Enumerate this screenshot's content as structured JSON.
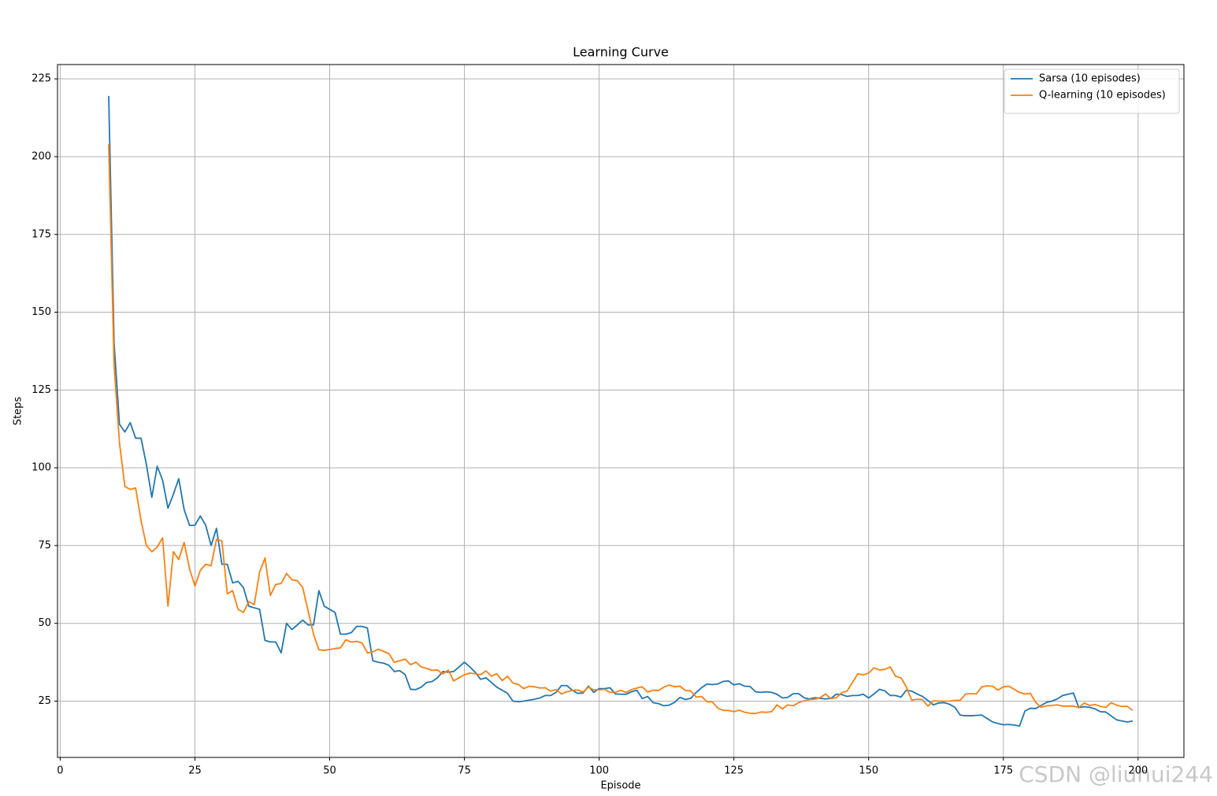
{
  "chart_data": {
    "type": "line",
    "title": "Learning Curve",
    "x_label": "Episode",
    "y_label": "Steps",
    "x": [
      9,
      10,
      11,
      12,
      13,
      14,
      15,
      16,
      17,
      18,
      19,
      20,
      21,
      22,
      23,
      24,
      25,
      26,
      27,
      28,
      29,
      30,
      31,
      32,
      33,
      34,
      35,
      36,
      37,
      38,
      39,
      40,
      41,
      42,
      43,
      44,
      45,
      46,
      47,
      48,
      49,
      50,
      51,
      52,
      53,
      54,
      55,
      56,
      57,
      58,
      59,
      60,
      61,
      62,
      63,
      64,
      65,
      66,
      67,
      68,
      69,
      70,
      71,
      72,
      73,
      74,
      75,
      76,
      77,
      78,
      79,
      80,
      81,
      82,
      83,
      84,
      85,
      86,
      87,
      88,
      89,
      90,
      91,
      92,
      93,
      94,
      95,
      96,
      97,
      98,
      99,
      100,
      101,
      102,
      103,
      104,
      105,
      106,
      107,
      108,
      109,
      110,
      111,
      112,
      113,
      114,
      115,
      116,
      117,
      118,
      119,
      120,
      121,
      122,
      123,
      124,
      125,
      126,
      127,
      128,
      129,
      130,
      131,
      132,
      133,
      134,
      135,
      136,
      137,
      138,
      139,
      140,
      141,
      142,
      143,
      144,
      145,
      146,
      147,
      148,
      149,
      150,
      151,
      152,
      153,
      154,
      155,
      156,
      157,
      158,
      159,
      160,
      161,
      162,
      163,
      164,
      165,
      166,
      167,
      168,
      169,
      170,
      171,
      172,
      173,
      174,
      175,
      176,
      177,
      178,
      179,
      180,
      181,
      182,
      183,
      184,
      185,
      186,
      187,
      188,
      189,
      190,
      191,
      192,
      193,
      194,
      195,
      196,
      197,
      198,
      199
    ],
    "series": [
      {
        "name": "Sarsa (10 episodes)",
        "color": "#1f77b4",
        "values": [
          219.5,
          140,
          114,
          111.5,
          114.5,
          109.5,
          109.5,
          101,
          90.5,
          100.5,
          96,
          87,
          91.5,
          96.5,
          86.5,
          81.5,
          81.5,
          84.5,
          81.5,
          75,
          80.5,
          69,
          69,
          63,
          63.5,
          61.5,
          55.5,
          55,
          54.5,
          44.5,
          44,
          44,
          40.5,
          50,
          48,
          49.5,
          51,
          49.5,
          49.5,
          60.5,
          55.5,
          54.5,
          53.5,
          46.5,
          46.5,
          47,
          49,
          49,
          48.5,
          38,
          37.5,
          37.2,
          36.5,
          34.5,
          34.8,
          33.5,
          28.8,
          28.7,
          29.5,
          31,
          31.3,
          32.5,
          34.5,
          34.3,
          34.5,
          36,
          37.5,
          36,
          34.3,
          32,
          32.5,
          31,
          29.5,
          28.5,
          27.5,
          25,
          24.8,
          25,
          25.3,
          25.6,
          26,
          26.8,
          26.8,
          27.8,
          30,
          30,
          28.5,
          27.5,
          27.6,
          29.8,
          27.8,
          29,
          29,
          29.3,
          27.3,
          27.2,
          27.2,
          28,
          28.5,
          25.8,
          26.5,
          24.5,
          24.2,
          23.5,
          23.7,
          24.6,
          26.2,
          25.5,
          25.9,
          27.8,
          29.3,
          30.5,
          30.3,
          30.5,
          31.3,
          31.5,
          30.2,
          30.6,
          29.8,
          29.7,
          28,
          27.8,
          28,
          27.8,
          27.2,
          26,
          26.2,
          27.4,
          27.4,
          26.1,
          25.7,
          26.1,
          25.9,
          25.7,
          25.9,
          27.2,
          27.1,
          26.5,
          26.8,
          26.8,
          27.2,
          26,
          27.3,
          28.8,
          28.3,
          26.8,
          26.8,
          26.3,
          28.5,
          28.2,
          27.3,
          26.5,
          25.2,
          23.8,
          24.4,
          24.5,
          24,
          23,
          20.5,
          20.3,
          20.3,
          20.4,
          20.5,
          19.4,
          18.3,
          17.8,
          17.4,
          17.5,
          17.3,
          17,
          21.8,
          22.7,
          22.6,
          23.6,
          24.6,
          25,
          25.7,
          26.8,
          27.2,
          27.6,
          22.9,
          23.2,
          23,
          22.5,
          21.6,
          21.5,
          20.2,
          19,
          18.6,
          18.3,
          18.6
        ]
      },
      {
        "name": "Q-learning (10 episodes)",
        "color": "#ff7f0e",
        "values": [
          204,
          133,
          108,
          94,
          93,
          93.5,
          83,
          75,
          73,
          74.5,
          77.5,
          55.5,
          73,
          70.5,
          76,
          67.5,
          62,
          67,
          69,
          68.5,
          77,
          76.5,
          59.5,
          60.5,
          54.5,
          53.5,
          57,
          56,
          66.5,
          71,
          59,
          62.5,
          62.8,
          66,
          64,
          63.7,
          61.5,
          54,
          46.5,
          41.5,
          41.3,
          41.6,
          41.9,
          42.1,
          44.7,
          44,
          44.2,
          43.7,
          40.5,
          40.8,
          41.7,
          41,
          40.2,
          37.5,
          38,
          38.5,
          36.7,
          37.5,
          36,
          35.5,
          34.9,
          35,
          33.7,
          35,
          31.5,
          32.5,
          33.5,
          34,
          33.8,
          33.5,
          34.7,
          33,
          33.8,
          31.6,
          33,
          30.8,
          30.4,
          29,
          29.8,
          29.6,
          29.2,
          29.3,
          28.2,
          28.7,
          27.3,
          28,
          28.4,
          28.6,
          27.9,
          29.5,
          28.6,
          28.6,
          28.8,
          27.8,
          27.8,
          28.5,
          27.8,
          28.7,
          29.2,
          29.6,
          27.9,
          28.5,
          28.4,
          29.5,
          30.2,
          29.6,
          29.8,
          28.4,
          28.3,
          26.3,
          26.5,
          24.8,
          24.7,
          22.8,
          22,
          22,
          21.6,
          22.1,
          21.4,
          21.1,
          21,
          21.5,
          21.4,
          21.6,
          23.8,
          22.5,
          23.8,
          23.5,
          24.5,
          25.1,
          25.5,
          25.6,
          26.1,
          27.3,
          25.8,
          26.1,
          27.7,
          28.2,
          31,
          33.8,
          33.4,
          34,
          35.7,
          35,
          35.2,
          36,
          33,
          32.5,
          29.5,
          25.3,
          25.6,
          25.5,
          23.4,
          25.1,
          25,
          25,
          25,
          25.2,
          25.3,
          27.3,
          27.4,
          27.3,
          29.6,
          29.9,
          29.8,
          28.5,
          29.6,
          29.8,
          28.8,
          27.8,
          27.3,
          27.5,
          24.6,
          23,
          23.5,
          23.6,
          23.8,
          23.4,
          23.4,
          23.4,
          22.9,
          24.4,
          23.6,
          23.9,
          23.3,
          23,
          24.5,
          23.7,
          23.3,
          23.3,
          22
        ]
      }
    ],
    "xlim": [
      -0.5,
      208.5
    ],
    "ylim": [
      6.9,
      229.6
    ],
    "xticks": [
      0,
      25,
      50,
      75,
      100,
      125,
      150,
      175,
      200
    ],
    "yticks": [
      25,
      50,
      75,
      100,
      125,
      150,
      175,
      200,
      225
    ],
    "grid": true,
    "legend": "upper right",
    "watermark": "CSDN @liuhui244"
  }
}
